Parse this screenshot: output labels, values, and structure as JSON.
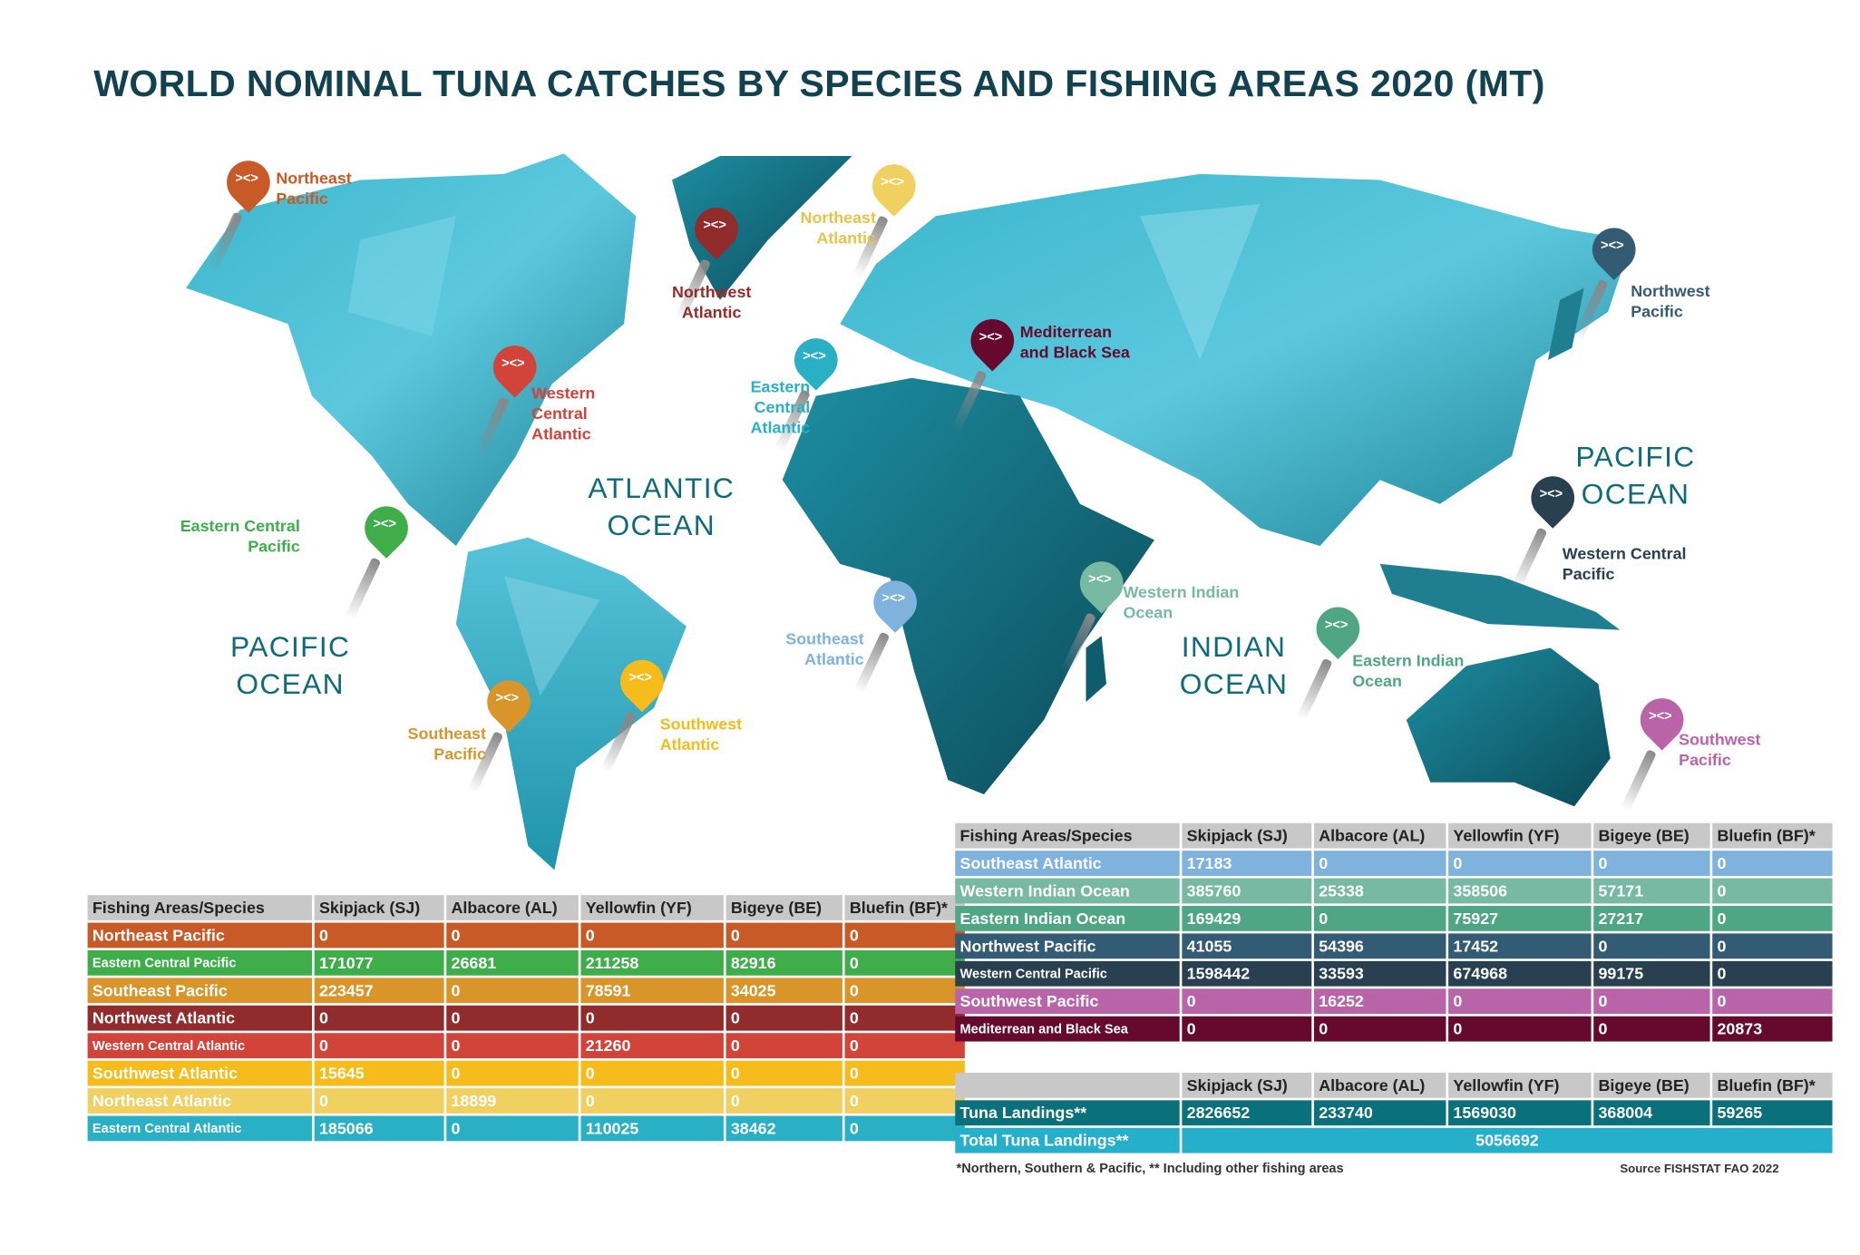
{
  "title": "WORLD NOMINAL TUNA CATCHES BY SPECIES AND FISHING AREAS 2020 (MT)",
  "oceans": [
    "ATLANTIC\nOCEAN",
    "PACIFIC\nOCEAN",
    "INDIAN\nOCEAN",
    "PACIFIC\nOCEAN"
  ],
  "pins": [
    {
      "label": "Northeast\nPacific",
      "color": "#c85a28"
    },
    {
      "label": "Northwest\nAtlantic",
      "color": "#922b2b"
    },
    {
      "label": "Northeast\nAtlantic",
      "color": "#f0d060"
    },
    {
      "label": "Western\nCentral\nAtlantic",
      "color": "#d2433a"
    },
    {
      "label": "Eastern\nCentral\nAtlantic",
      "color": "#2ab0c4"
    },
    {
      "label": "Mediterrean\nand Black Sea",
      "color": "#650a2e"
    },
    {
      "label": "Northwest\nPacific",
      "color": "#335b73"
    },
    {
      "label": "Eastern Central\nPacific",
      "color": "#3fad49"
    },
    {
      "label": "Southeast\nPacific",
      "color": "#d9952a"
    },
    {
      "label": "Southwest\nAtlantic",
      "color": "#f5bc1c"
    },
    {
      "label": "Southeast\nAtlantic",
      "color": "#7fb2dc"
    },
    {
      "label": "Western Indian\nOcean",
      "color": "#77b9a2"
    },
    {
      "label": "Eastern Indian\nOcean",
      "color": "#4fa685"
    },
    {
      "label": "Western Central\nPacific",
      "color": "#28404f"
    },
    {
      "label": "Southwest\nPacific",
      "color": "#b964a8"
    }
  ],
  "columns": [
    "Fishing Areas/Species",
    "Skipjack (SJ)",
    "Albacore (AL)",
    "Yellowfin (YF)",
    "Bigeye (BE)",
    "Bluefin (BF)*"
  ],
  "table_left": [
    {
      "area": "Northeast Pacific",
      "color": "#c85a28",
      "values": [
        "0",
        "0",
        "0",
        "0",
        "0"
      ]
    },
    {
      "area": "Eastern Central Pacific",
      "color": "#3fad49",
      "values": [
        "171077",
        "26681",
        "211258",
        "82916",
        "0"
      ]
    },
    {
      "area": "Southeast Pacific",
      "color": "#d9952a",
      "values": [
        "223457",
        "0",
        "78591",
        "34025",
        "0"
      ]
    },
    {
      "area": "Northwest Atlantic",
      "color": "#922b2b",
      "values": [
        "0",
        "0",
        "0",
        "0",
        "0"
      ]
    },
    {
      "area": "Western Central Atlantic",
      "color": "#d2433a",
      "values": [
        "0",
        "0",
        "21260",
        "0",
        "0"
      ]
    },
    {
      "area": "Southwest Atlantic",
      "color": "#f5bc1c",
      "values": [
        "15645",
        "0",
        "0",
        "0",
        "0"
      ]
    },
    {
      "area": "Northeast Atlantic",
      "color": "#f0d060",
      "values": [
        "0",
        "18899",
        "0",
        "0",
        "0"
      ]
    },
    {
      "area": "Eastern Central Atlantic",
      "color": "#2ab0c4",
      "values": [
        "185066",
        "0",
        "110025",
        "38462",
        "0"
      ]
    }
  ],
  "table_right": [
    {
      "area": "Southeast Atlantic",
      "color": "#7fb2dc",
      "values": [
        "17183",
        "0",
        "0",
        "0",
        "0"
      ]
    },
    {
      "area": "Western Indian Ocean",
      "color": "#77b9a2",
      "values": [
        "385760",
        "25338",
        "358506",
        "57171",
        "0"
      ]
    },
    {
      "area": "Eastern Indian Ocean",
      "color": "#4fa685",
      "values": [
        "169429",
        "0",
        "75927",
        "27217",
        "0"
      ]
    },
    {
      "area": "Northwest Pacific",
      "color": "#335b73",
      "values": [
        "41055",
        "54396",
        "17452",
        "0",
        "0"
      ]
    },
    {
      "area": "Western Central Pacific",
      "color": "#28404f",
      "values": [
        "1598442",
        "33593",
        "674968",
        "99175",
        "0"
      ]
    },
    {
      "area": "Southwest Pacific",
      "color": "#b964a8",
      "values": [
        "0",
        "16252",
        "0",
        "0",
        "0"
      ]
    },
    {
      "area": "Mediterrean and Black Sea",
      "color": "#650a2e",
      "values": [
        "0",
        "0",
        "0",
        "0",
        "20873"
      ]
    }
  ],
  "totals": {
    "columns": [
      "",
      "Skipjack (SJ)",
      "Albacore (AL)",
      "Yellowfin (YF)",
      "Bigeye (BE)",
      "Bluefin (BF)*"
    ],
    "landings_label": "Tuna Landings**",
    "landings_color": "#09707c",
    "landings": [
      "2826652",
      "233740",
      "1569030",
      "368004",
      "59265"
    ],
    "total_label": "Total Tuna Landings**",
    "total_color": "#25afcb",
    "total": "5056692"
  },
  "footnote": "*Northern, Southern & Pacific, ** Including other fishing areas",
  "source": "Source FISHSTAT FAO 2022"
}
